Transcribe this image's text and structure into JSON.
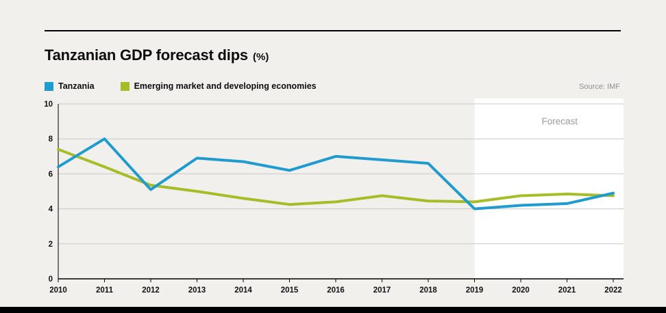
{
  "header": {
    "title": "Tanzanian GDP forecast dips",
    "title_suffix": "(%)",
    "source": "Source: IMF"
  },
  "legend": [
    {
      "label": "Tanzania",
      "color": "#1f9bce"
    },
    {
      "label": "Emerging market and developing economies",
      "color": "#a6bd28"
    }
  ],
  "chart_data": {
    "type": "line",
    "title": "Tanzanian GDP forecast dips (%)",
    "x": [
      2010,
      2011,
      2012,
      2013,
      2014,
      2015,
      2016,
      2017,
      2018,
      2019,
      2020,
      2021,
      2022
    ],
    "series": [
      {
        "name": "Tanzania",
        "color": "#1f9bce",
        "values": [
          6.4,
          8.0,
          5.1,
          6.9,
          6.7,
          6.2,
          7.0,
          6.8,
          6.6,
          4.0,
          4.2,
          4.3,
          4.9
        ]
      },
      {
        "name": "Emerging market and developing economies",
        "color": "#a6bd28",
        "values": [
          7.4,
          6.4,
          5.35,
          5.0,
          4.6,
          4.25,
          4.4,
          4.75,
          4.45,
          4.4,
          4.75,
          4.85,
          4.75
        ]
      }
    ],
    "ylim": [
      0,
      10
    ],
    "yticks": [
      0,
      2,
      4,
      6,
      8,
      10
    ],
    "grid": true,
    "legend_position": "top-left",
    "forecast_start": 2019,
    "forecast_label": "Forecast",
    "source": "Source: IMF"
  }
}
